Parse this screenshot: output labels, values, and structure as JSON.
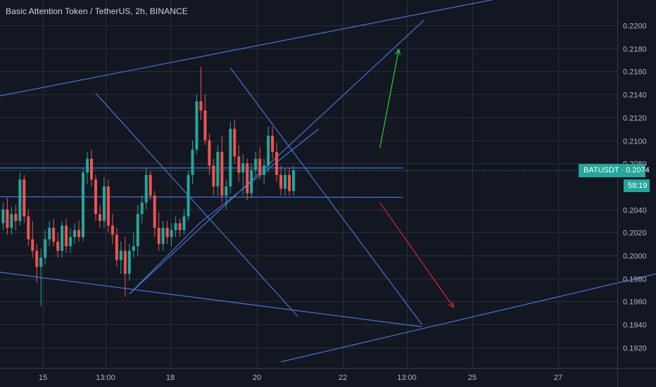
{
  "header": {
    "title": "Basic Attention Token / TetherUS, 2h, BINANCE"
  },
  "price_tag": {
    "symbol": "BATUSDT",
    "price": "0.2074",
    "label": "BATUSDT · 0.2074",
    "color": "#26a69a"
  },
  "countdown": {
    "text": "58:19"
  },
  "colors": {
    "background": "#131722",
    "grid": "#2a2e39",
    "up": "#26a69a",
    "down": "#ef5350",
    "drawing": "#4a74d6",
    "last_price_line": "#26a69a",
    "arrow_up": "#2ecc40",
    "arrow_down": "#e0252b"
  },
  "chart_data": {
    "type": "candlestick",
    "title": "Basic Attention Token / TetherUS, 2h, BINANCE",
    "y_axis": {
      "side": "right",
      "range": [
        0.191,
        0.2228
      ],
      "ticks": [
        "0.2200",
        "0.2180",
        "0.2160",
        "0.2140",
        "0.2120",
        "0.2100",
        "0.2080",
        "0.2040",
        "0.2020",
        "0.2000",
        "0.1980",
        "0.1960",
        "0.1940",
        "0.1920"
      ]
    },
    "x_axis": {
      "ticks": [
        "15",
        "13:00",
        "18",
        "20",
        "22",
        "13:00",
        "25",
        "27"
      ]
    },
    "last_price": 0.2074,
    "candles": [
      [
        0.2028,
        0.2046,
        0.2022,
        0.204
      ],
      [
        0.204,
        0.205,
        0.2018,
        0.2024
      ],
      [
        0.2024,
        0.2042,
        0.2018,
        0.2036
      ],
      [
        0.2036,
        0.2044,
        0.2022,
        0.203
      ],
      [
        0.203,
        0.2072,
        0.2026,
        0.2066
      ],
      [
        0.2066,
        0.207,
        0.2028,
        0.2034
      ],
      [
        0.2034,
        0.204,
        0.2008,
        0.2014
      ],
      [
        0.2014,
        0.203,
        0.1998,
        0.2004
      ],
      [
        0.2004,
        0.201,
        0.1976,
        0.199
      ],
      [
        0.199,
        0.2006,
        0.1956,
        0.1998
      ],
      [
        0.1998,
        0.2022,
        0.1992,
        0.2014
      ],
      [
        0.2014,
        0.203,
        0.2008,
        0.2024
      ],
      [
        0.2024,
        0.2032,
        0.2008,
        0.2012
      ],
      [
        0.2012,
        0.202,
        0.1998,
        0.2004
      ],
      [
        0.2004,
        0.203,
        0.1998,
        0.2026
      ],
      [
        0.2026,
        0.2032,
        0.2002,
        0.2008
      ],
      [
        0.2008,
        0.2024,
        0.2002,
        0.2016
      ],
      [
        0.2016,
        0.2028,
        0.201,
        0.2022
      ],
      [
        0.2022,
        0.203,
        0.2012,
        0.2016
      ],
      [
        0.2016,
        0.2076,
        0.2012,
        0.2072
      ],
      [
        0.2072,
        0.209,
        0.2062,
        0.2084
      ],
      [
        0.2084,
        0.2092,
        0.206,
        0.2066
      ],
      [
        0.2066,
        0.207,
        0.203,
        0.2036
      ],
      [
        0.2036,
        0.2044,
        0.2024,
        0.203
      ],
      [
        0.203,
        0.2068,
        0.2024,
        0.206
      ],
      [
        0.206,
        0.2066,
        0.202,
        0.2026
      ],
      [
        0.2026,
        0.2036,
        0.201,
        0.2018
      ],
      [
        0.2018,
        0.2024,
        0.199,
        0.1996
      ],
      [
        0.1996,
        0.2012,
        0.1984,
        0.2004
      ],
      [
        0.2004,
        0.2016,
        0.1964,
        0.1984
      ],
      [
        0.1984,
        0.201,
        0.1978,
        0.2004
      ],
      [
        0.2004,
        0.202,
        0.1998,
        0.2008
      ],
      [
        0.2008,
        0.2044,
        0.2,
        0.2036
      ],
      [
        0.2036,
        0.2052,
        0.2028,
        0.2046
      ],
      [
        0.2046,
        0.2076,
        0.204,
        0.207
      ],
      [
        0.207,
        0.2074,
        0.2048,
        0.2052
      ],
      [
        0.2052,
        0.2056,
        0.2016,
        0.2024
      ],
      [
        0.2024,
        0.2038,
        0.2004,
        0.201
      ],
      [
        0.201,
        0.203,
        0.2004,
        0.2024
      ],
      [
        0.2024,
        0.203,
        0.201,
        0.2016
      ],
      [
        0.2016,
        0.2028,
        0.2008,
        0.2022
      ],
      [
        0.2022,
        0.2034,
        0.2016,
        0.2028
      ],
      [
        0.2028,
        0.2032,
        0.2016,
        0.2022
      ],
      [
        0.2022,
        0.204,
        0.2018,
        0.2034
      ],
      [
        0.2034,
        0.2074,
        0.203,
        0.207
      ],
      [
        0.207,
        0.21,
        0.2062,
        0.2092
      ],
      [
        0.2092,
        0.214,
        0.2088,
        0.2134
      ],
      [
        0.2134,
        0.2164,
        0.2118,
        0.2126
      ],
      [
        0.2126,
        0.214,
        0.2096,
        0.21
      ],
      [
        0.21,
        0.2106,
        0.207,
        0.2078
      ],
      [
        0.2078,
        0.2084,
        0.2052,
        0.206
      ],
      [
        0.206,
        0.2096,
        0.2052,
        0.209
      ],
      [
        0.209,
        0.2104,
        0.2046,
        0.2052
      ],
      [
        0.2052,
        0.2066,
        0.204,
        0.206
      ],
      [
        0.206,
        0.2116,
        0.2054,
        0.211
      ],
      [
        0.211,
        0.2118,
        0.208,
        0.2086
      ],
      [
        0.2086,
        0.2096,
        0.2064,
        0.2072
      ],
      [
        0.2072,
        0.2088,
        0.2052,
        0.208
      ],
      [
        0.208,
        0.2084,
        0.2048,
        0.2054
      ],
      [
        0.2054,
        0.208,
        0.205,
        0.2074
      ],
      [
        0.2074,
        0.209,
        0.2068,
        0.2084
      ],
      [
        0.2084,
        0.2094,
        0.2066,
        0.207
      ],
      [
        0.207,
        0.2084,
        0.2062,
        0.2078
      ],
      [
        0.2078,
        0.2112,
        0.2072,
        0.2104
      ],
      [
        0.2104,
        0.2112,
        0.2084,
        0.209
      ],
      [
        0.209,
        0.2098,
        0.2064,
        0.207
      ],
      [
        0.207,
        0.2078,
        0.2052,
        0.2058
      ],
      [
        0.2058,
        0.2076,
        0.2052,
        0.207
      ],
      [
        0.207,
        0.2076,
        0.2052,
        0.2056
      ],
      [
        0.2056,
        0.2078,
        0.2052,
        0.2074
      ]
    ],
    "drawings": [
      {
        "name": "upper-channel-line",
        "from": [
          -1,
          0.21385
        ],
        "to": [
          125,
          0.22285
        ],
        "color": "drawing"
      },
      {
        "name": "lower-channel-line",
        "from": [
          -1,
          0.19855
        ],
        "to": [
          99.5,
          0.1938
        ],
        "color": "drawing"
      },
      {
        "name": "right-rising-line",
        "from": [
          66,
          0.19075
        ],
        "to": [
          217,
          0.2037
        ],
        "color": "drawing"
      },
      {
        "name": "resistance-line",
        "from": [
          -1,
          0.2076
        ],
        "to": [
          95,
          0.2076
        ],
        "color": "drawing"
      },
      {
        "name": "support-line",
        "from": [
          -1,
          0.2051
        ],
        "to": [
          95,
          0.20505
        ],
        "color": "drawing"
      },
      {
        "name": "rising-diagonal-line",
        "from": [
          30,
          0.19665
        ],
        "to": [
          100,
          0.22045
        ],
        "color": "drawing"
      },
      {
        "name": "falling-diagonal-line-1",
        "from": [
          22,
          0.2141
        ],
        "to": [
          70,
          0.1947
        ],
        "color": "drawing"
      },
      {
        "name": "falling-diagonal-line-2",
        "from": [
          54,
          0.2163
        ],
        "to": [
          99.5,
          0.194
        ],
        "color": "drawing"
      },
      {
        "name": "wedge-diagonal-line-1",
        "from": [
          30,
          0.19665
        ],
        "to": [
          47,
          0.2029
        ],
        "color": "drawing"
      },
      {
        "name": "wedge-diagonal-line-2",
        "from": [
          47,
          0.2029
        ],
        "to": [
          75,
          0.211
        ],
        "color": "drawing"
      }
    ],
    "arrows": [
      {
        "name": "arrow-up",
        "from": [
          89.5,
          0.2093
        ],
        "to": [
          94,
          0.2179
        ],
        "color": "arrow_up"
      },
      {
        "name": "arrow-down",
        "from": [
          89.5,
          0.2046
        ],
        "to": [
          107,
          0.1955
        ],
        "color": "arrow_down"
      }
    ]
  }
}
